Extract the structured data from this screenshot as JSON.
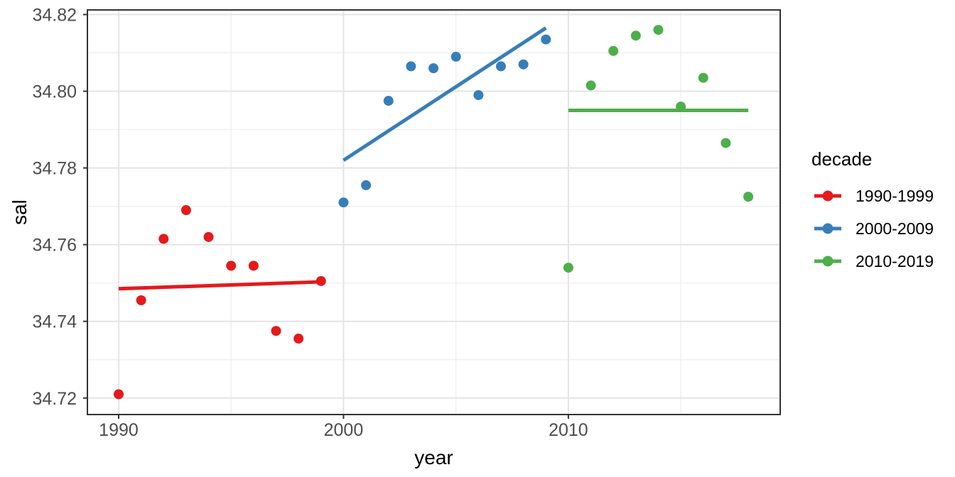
{
  "chart_data": {
    "type": "scatter",
    "title": "",
    "xlabel": "year",
    "ylabel": "sal",
    "legend_title": "decade",
    "legend_position": "right",
    "grid": true,
    "xlim": [
      1988.61,
      2019.42
    ],
    "ylim": [
      34.7157,
      34.8212
    ],
    "x_major_breaks": [
      1990,
      2000,
      2010
    ],
    "x_minor_breaks": [
      1995,
      2005,
      2015
    ],
    "x_tick_labels": [
      "1990",
      "2000",
      "2010"
    ],
    "y_major_breaks": [
      34.72,
      34.74,
      34.76,
      34.78,
      34.8,
      34.82
    ],
    "y_minor_breaks": [
      34.73,
      34.75,
      34.77,
      34.79,
      34.81
    ],
    "y_tick_labels": [
      "34.72",
      "34.74",
      "34.76",
      "34.78",
      "34.80",
      "34.82"
    ],
    "series": [
      {
        "name": "1990-1999",
        "color": "#E41A1C",
        "x": [
          1990,
          1991,
          1992,
          1993,
          1994,
          1995,
          1996,
          1997,
          1998,
          1999
        ],
        "y": [
          34.721,
          34.7455,
          34.7615,
          34.769,
          34.762,
          34.7545,
          34.7545,
          34.7375,
          34.7355,
          34.7505
        ],
        "trend": {
          "x": [
            1990,
            1999
          ],
          "y": [
            34.7485,
            34.7503
          ]
        }
      },
      {
        "name": "2000-2009",
        "color": "#377EB8",
        "x": [
          2000,
          2001,
          2002,
          2003,
          2004,
          2005,
          2006,
          2007,
          2008,
          2009
        ],
        "y": [
          34.771,
          34.7755,
          34.7975,
          34.8065,
          34.806,
          34.809,
          34.799,
          34.8065,
          34.807,
          34.8135
        ],
        "trend": {
          "x": [
            2000,
            2009
          ],
          "y": [
            34.782,
            34.8165
          ]
        }
      },
      {
        "name": "2010-2019",
        "color": "#4DAF4A",
        "x": [
          2010,
          2011,
          2012,
          2013,
          2014,
          2015,
          2016,
          2017,
          2018
        ],
        "y": [
          34.754,
          34.8015,
          34.8105,
          34.8145,
          34.816,
          34.796,
          34.8035,
          34.7865,
          34.7725
        ],
        "trend": {
          "x": [
            2010,
            2018
          ],
          "y": [
            34.795,
            34.795
          ]
        }
      }
    ],
    "style": {
      "panel_border_color": "#333333",
      "grid_major_color": "#E4E4E4",
      "grid_minor_color": "#EDEDED",
      "tick_color": "#333333",
      "tick_label_color": "#4D4D4D",
      "point_radius": 7,
      "line_width": 5
    }
  }
}
